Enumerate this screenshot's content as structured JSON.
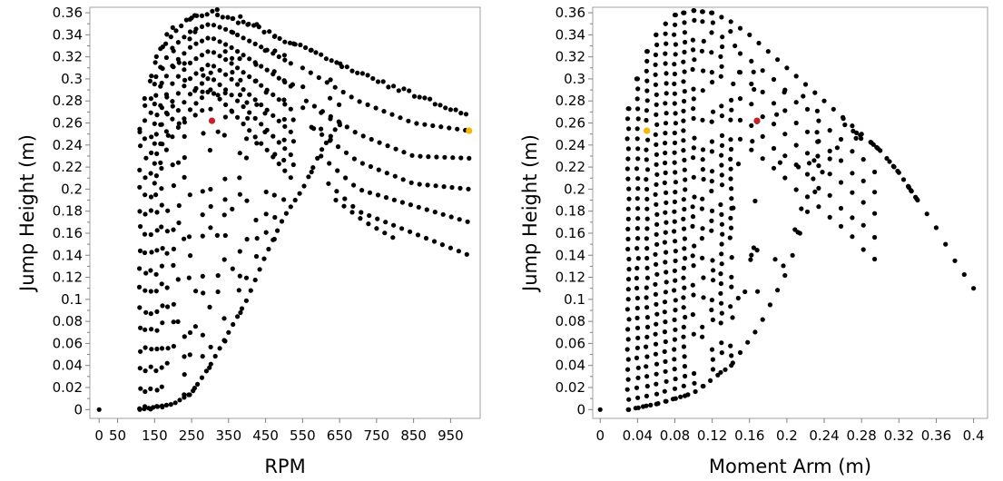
{
  "colors": {
    "point": "#000000",
    "highlight_red": "#c8202a",
    "highlight_yellow": "#f5b800",
    "frame": "#a0a0a0"
  },
  "chart_data": [
    {
      "type": "scatter",
      "title": "",
      "xlabel": "RPM",
      "ylabel": "Jump Height (m)",
      "xlim": [
        -25,
        1030
      ],
      "ylim": [
        -0.008,
        0.365
      ],
      "xticks": [
        "0",
        "50",
        "150",
        "250",
        "350",
        "450",
        "550",
        "650",
        "750",
        "850",
        "950"
      ],
      "yticks": [
        "0",
        "0.02",
        "0.04",
        "0.06",
        "0.08",
        "0.1",
        "0.12",
        "0.14",
        "0.16",
        "0.18",
        "0.2",
        "0.22",
        "0.24",
        "0.26",
        "0.28",
        "0.3",
        "0.32",
        "0.34",
        "0.36"
      ],
      "grid": false,
      "highlights": [
        {
          "x": 305,
          "y": 0.262,
          "color": "red"
        },
        {
          "x": 1000,
          "y": 0.253,
          "color": "yellow"
        }
      ],
      "curve_family": {
        "description": "decaying families read from the plot",
        "ridge": [
          [
            110,
            0.255
          ],
          [
            130,
            0.29
          ],
          [
            160,
            0.325
          ],
          [
            200,
            0.345
          ],
          [
            250,
            0.358
          ],
          [
            300,
            0.362
          ],
          [
            350,
            0.358
          ],
          [
            450,
            0.345
          ],
          [
            550,
            0.33
          ],
          [
            650,
            0.315
          ],
          [
            750,
            0.3
          ],
          [
            850,
            0.288
          ],
          [
            950,
            0.276
          ],
          [
            1000,
            0.27
          ]
        ],
        "envelope_low": [
          [
            110,
            0.0
          ],
          [
            200,
            0.005
          ],
          [
            250,
            0.015
          ],
          [
            300,
            0.04
          ],
          [
            350,
            0.07
          ],
          [
            400,
            0.1
          ],
          [
            450,
            0.14
          ],
          [
            500,
            0.175
          ],
          [
            550,
            0.2
          ],
          [
            600,
            0.235
          ],
          [
            650,
            0.26
          ]
        ],
        "tails": [
          [
            [
              550,
              0.31
            ],
            [
              700,
              0.28
            ],
            [
              850,
              0.26
            ],
            [
              1000,
              0.253
            ]
          ],
          [
            [
              560,
              0.28
            ],
            [
              700,
              0.25
            ],
            [
              850,
              0.23
            ],
            [
              1000,
              0.228
            ]
          ],
          [
            [
              580,
              0.255
            ],
            [
              700,
              0.225
            ],
            [
              850,
              0.205
            ],
            [
              1000,
              0.2
            ]
          ],
          [
            [
              600,
              0.23
            ],
            [
              700,
              0.2
            ],
            [
              850,
              0.185
            ],
            [
              1000,
              0.17
            ]
          ],
          [
            [
              620,
              0.205
            ],
            [
              700,
              0.18
            ],
            [
              850,
              0.16
            ],
            [
              1000,
              0.14
            ]
          ],
          [
            [
              640,
              0.19
            ],
            [
              720,
              0.17
            ],
            [
              800,
              0.155
            ]
          ]
        ]
      }
    },
    {
      "type": "scatter",
      "title": "",
      "xlabel": "Moment Arm (m)",
      "ylabel": "Jump Height (m)",
      "xlim": [
        -0.008,
        0.415
      ],
      "ylim": [
        -0.008,
        0.365
      ],
      "xticks": [
        "0",
        "0.04",
        "0.08",
        "0.12",
        "0.16",
        "0.2",
        "0.24",
        "0.28",
        "0.32",
        "0.36",
        "0.4"
      ],
      "yticks": [
        "0",
        "0.02",
        "0.04",
        "0.06",
        "0.08",
        "0.1",
        "0.12",
        "0.14",
        "0.16",
        "0.18",
        "0.2",
        "0.22",
        "0.24",
        "0.26",
        "0.28",
        "0.3",
        "0.32",
        "0.34",
        "0.36"
      ],
      "grid": false,
      "highlights": [
        {
          "x": 0.05,
          "y": 0.253,
          "color": "yellow"
        },
        {
          "x": 0.168,
          "y": 0.262,
          "color": "red"
        }
      ],
      "curve_family": {
        "ridge": [
          [
            0.03,
            0.273
          ],
          [
            0.04,
            0.3
          ],
          [
            0.05,
            0.325
          ],
          [
            0.06,
            0.34
          ],
          [
            0.07,
            0.35
          ],
          [
            0.08,
            0.358
          ],
          [
            0.1,
            0.362
          ],
          [
            0.12,
            0.36
          ],
          [
            0.14,
            0.352
          ],
          [
            0.16,
            0.34
          ],
          [
            0.18,
            0.325
          ],
          [
            0.2,
            0.31
          ],
          [
            0.22,
            0.295
          ],
          [
            0.24,
            0.28
          ],
          [
            0.26,
            0.265
          ],
          [
            0.28,
            0.25
          ],
          [
            0.3,
            0.235
          ],
          [
            0.32,
            0.215
          ],
          [
            0.34,
            0.19
          ],
          [
            0.36,
            0.165
          ],
          [
            0.38,
            0.135
          ],
          [
            0.4,
            0.11
          ],
          [
            0.41,
            0.09
          ]
        ],
        "envelope_low": [
          [
            0.03,
            0.0
          ],
          [
            0.06,
            0.005
          ],
          [
            0.1,
            0.015
          ],
          [
            0.14,
            0.04
          ],
          [
            0.17,
            0.075
          ],
          [
            0.2,
            0.125
          ],
          [
            0.22,
            0.175
          ],
          [
            0.24,
            0.22
          ],
          [
            0.26,
            0.245
          ]
        ]
      }
    }
  ]
}
